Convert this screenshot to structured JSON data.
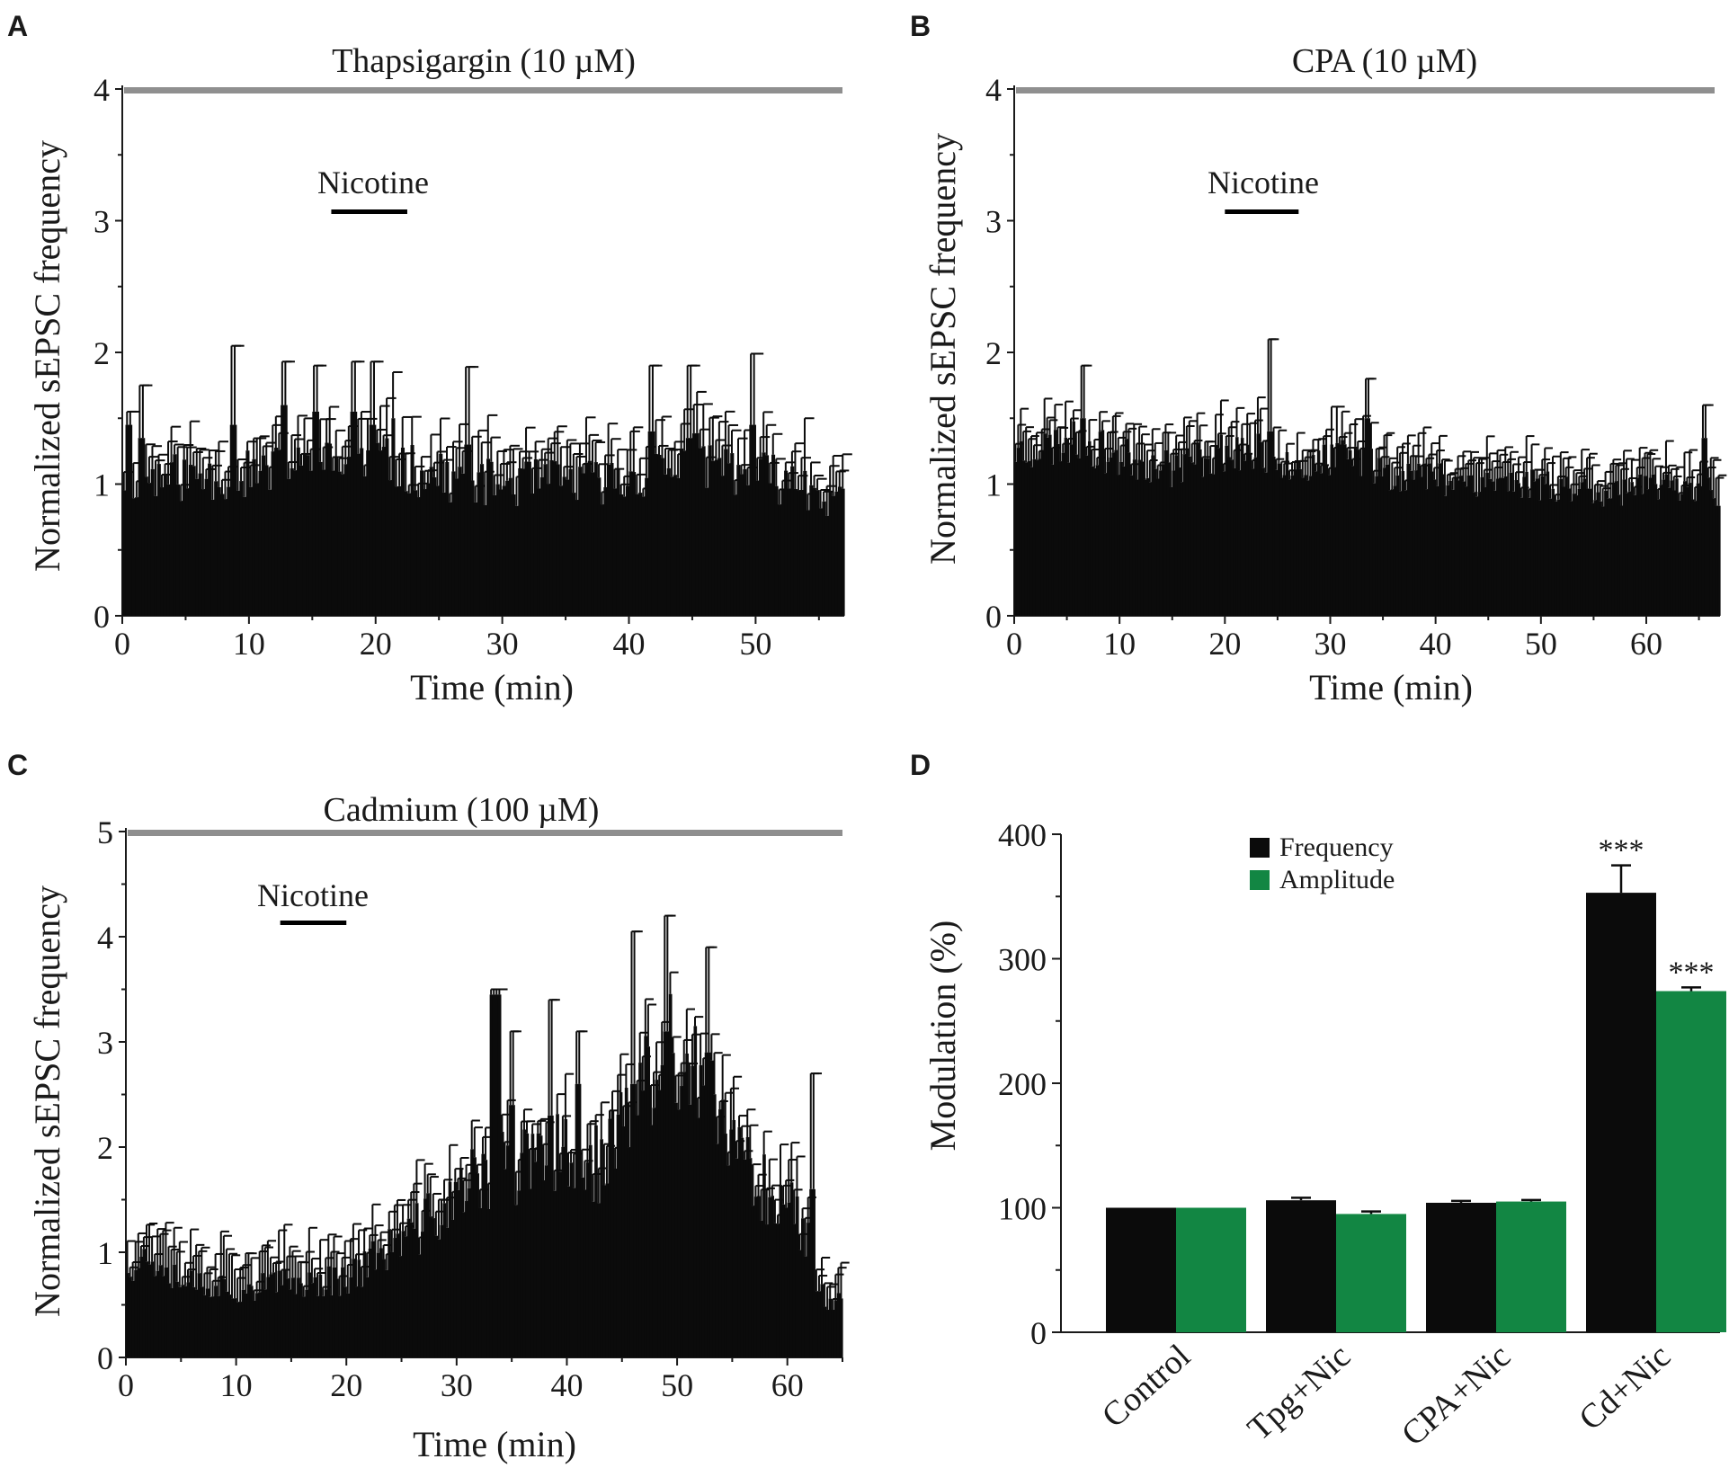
{
  "colors": {
    "bar_black": "#0b0b0b",
    "bar_green": "#128643",
    "drug_line": "#8f8f8f",
    "axis": "#1a1a1a"
  },
  "chart_data": [
    {
      "panel": "A",
      "type": "bar",
      "title": "Thapsigargin (10 µM)",
      "application_label": "Nicotine",
      "application_window_min": [
        16.5,
        22.5
      ],
      "xlabel": "Time (min)",
      "ylabel": "Normalized sEPSC frequency",
      "xlim": [
        0,
        57
      ],
      "ylim": [
        0,
        4
      ],
      "xticks": [
        0,
        10,
        20,
        30,
        40,
        50
      ],
      "yticks": [
        0,
        1,
        2,
        3,
        4
      ],
      "bin_min": 0.25,
      "profile": [
        [
          0,
          1.05
        ],
        [
          5,
          1.05
        ],
        [
          10,
          1.07
        ],
        [
          15,
          1.13
        ],
        [
          20,
          1.17
        ],
        [
          25,
          1.05
        ],
        [
          30,
          1.0
        ],
        [
          35,
          1.02
        ],
        [
          40,
          1.02
        ],
        [
          45,
          1.2
        ],
        [
          50,
          1.08
        ],
        [
          55,
          0.95
        ],
        [
          57,
          0.82
        ]
      ],
      "noise": 0.18,
      "err_mean": 0.24,
      "peaks": [
        [
          0.5,
          1.45,
          0.1
        ],
        [
          1.5,
          1.35,
          0.4
        ],
        [
          8.8,
          1.45,
          0.6
        ],
        [
          12.7,
          1.6,
          0.33
        ],
        [
          15.3,
          1.55,
          0.35
        ],
        [
          18.2,
          1.55,
          0.38
        ],
        [
          19.8,
          1.45,
          0.48
        ],
        [
          21.4,
          1.5,
          0.35
        ],
        [
          27.2,
          1.3,
          0.59
        ],
        [
          41.7,
          1.4,
          0.5
        ],
        [
          44.8,
          1.35,
          0.55
        ],
        [
          49.8,
          1.45,
          0.54
        ],
        [
          53.9,
          1.1,
          0.4
        ]
      ],
      "seed": 11
    },
    {
      "panel": "B",
      "type": "bar",
      "title": "CPA (10 µM)",
      "application_label": "Nicotine",
      "application_window_min": [
        20,
        27
      ],
      "xlabel": "Time (min)",
      "ylabel": "Normalized sEPSC frequency",
      "xlim": [
        0,
        67
      ],
      "ylim": [
        0,
        4
      ],
      "xticks": [
        0,
        10,
        20,
        30,
        40,
        50,
        60
      ],
      "yticks": [
        0,
        1,
        2,
        3,
        4
      ],
      "bin_min": 0.25,
      "profile": [
        [
          0,
          1.25
        ],
        [
          3,
          1.28
        ],
        [
          6,
          1.32
        ],
        [
          10,
          1.2
        ],
        [
          15,
          1.12
        ],
        [
          20,
          1.25
        ],
        [
          24,
          1.22
        ],
        [
          28,
          1.12
        ],
        [
          32,
          1.22
        ],
        [
          36,
          1.08
        ],
        [
          40,
          1.05
        ],
        [
          45,
          1.02
        ],
        [
          50,
          1.0
        ],
        [
          55,
          0.95
        ],
        [
          60,
          0.95
        ],
        [
          65,
          1.0
        ],
        [
          67,
          0.95
        ]
      ],
      "noise": 0.13,
      "err_mean": 0.2,
      "peaks": [
        [
          24.3,
          1.4,
          0.7
        ],
        [
          33.5,
          1.5,
          0.3
        ],
        [
          6.5,
          1.5,
          0.4
        ],
        [
          65.5,
          1.35,
          0.25
        ]
      ],
      "seed": 23
    },
    {
      "panel": "C",
      "type": "bar",
      "title": "Cadmium (100 µM)",
      "application_label": "Nicotine",
      "application_window_min": [
        14,
        20
      ],
      "xlabel": "Time (min)",
      "ylabel": "Normalized sEPSC frequency",
      "xlim": [
        0,
        65
      ],
      "ylim": [
        0,
        5
      ],
      "xticks": [
        0,
        10,
        20,
        30,
        40,
        50,
        60
      ],
      "yticks": [
        0,
        1,
        2,
        3,
        4,
        5
      ],
      "bin_min": 0.25,
      "profile": [
        [
          0,
          0.9
        ],
        [
          3,
          0.95
        ],
        [
          5,
          0.75
        ],
        [
          10,
          0.65
        ],
        [
          15,
          0.7
        ],
        [
          20,
          0.75
        ],
        [
          22,
          0.9
        ],
        [
          25,
          1.1
        ],
        [
          28,
          1.35
        ],
        [
          30,
          1.5
        ],
        [
          32,
          1.7
        ],
        [
          35,
          1.8
        ],
        [
          38,
          1.85
        ],
        [
          40,
          2.0
        ],
        [
          43,
          1.8
        ],
        [
          45,
          2.2
        ],
        [
          47,
          2.5
        ],
        [
          49,
          2.9
        ],
        [
          51,
          2.7
        ],
        [
          53,
          2.4
        ],
        [
          55,
          2.0
        ],
        [
          58,
          1.6
        ],
        [
          60,
          1.5
        ],
        [
          62,
          1.1
        ],
        [
          62.5,
          0.6
        ],
        [
          65,
          0.55
        ]
      ],
      "noise": 0.22,
      "err_mean": 0.3,
      "peaks": [
        [
          33.3,
          3.45,
          0.05
        ],
        [
          33.8,
          3.45,
          0.05
        ],
        [
          46,
          2.6,
          1.45
        ],
        [
          49,
          3.1,
          1.1
        ],
        [
          52.8,
          2.9,
          1.0
        ],
        [
          38.5,
          2.3,
          1.1
        ],
        [
          62.2,
          1.6,
          1.1
        ],
        [
          41,
          2.6,
          0.5
        ],
        [
          35,
          2.4,
          0.7
        ]
      ],
      "seed": 37
    },
    {
      "panel": "D",
      "type": "bar",
      "title": "",
      "xlabel": "",
      "ylabel": "Modulation (%)",
      "ylim": [
        0,
        400
      ],
      "yticks": [
        0,
        100,
        200,
        300,
        400
      ],
      "categories": [
        "Control",
        "Tpg+Nic",
        "CPA+Nic",
        "Cd+Nic"
      ],
      "series": [
        {
          "name": "Frequency",
          "color": "#0b0b0b",
          "values": [
            100,
            106,
            104,
            353
          ],
          "errors": [
            0,
            2,
            1.5,
            22
          ]
        },
        {
          "name": "Amplitude",
          "color": "#128643",
          "values": [
            100,
            95,
            105,
            274
          ],
          "errors": [
            0,
            2,
            1.2,
            3
          ]
        }
      ],
      "significance": [
        "",
        "",
        "",
        "***"
      ],
      "legend_position": "top-center"
    }
  ]
}
